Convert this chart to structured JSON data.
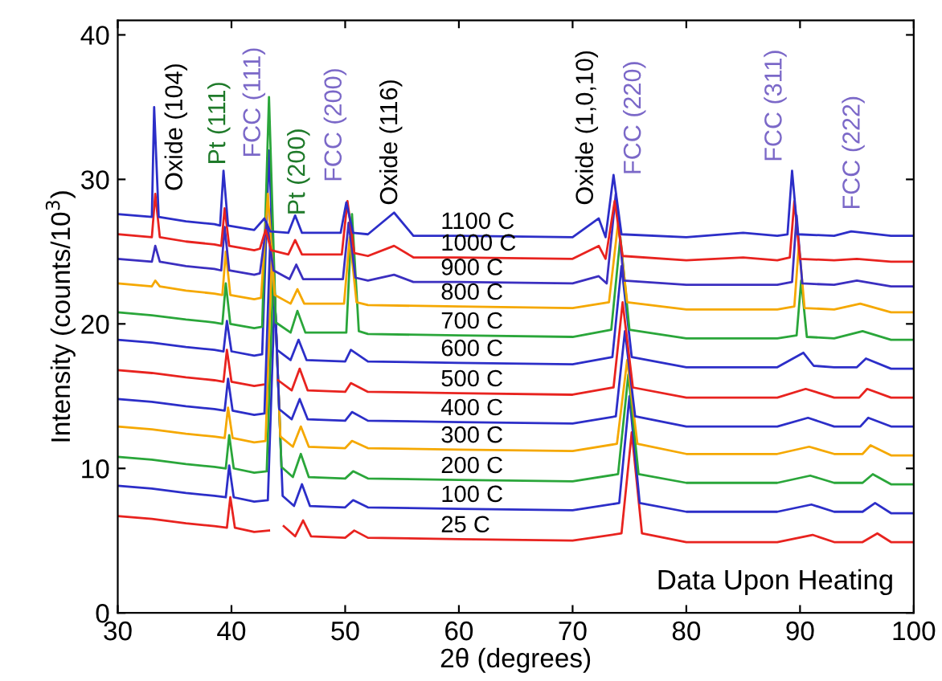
{
  "chart_data": {
    "type": "line",
    "xlabel": "2θ (degrees)",
    "ylabel": "Intensity (counts/10$^{3}$)",
    "xlim": [
      30,
      100
    ],
    "ylim": [
      0,
      41
    ],
    "xticks": [
      30,
      40,
      50,
      60,
      70,
      80,
      90,
      100
    ],
    "yticks": [
      0,
      10,
      20,
      30,
      40
    ],
    "grid": false,
    "legend": false,
    "marker": "none",
    "line_style": "solid",
    "series": [
      {
        "name": "25 C",
        "color": "#e8231f",
        "x": [
          30,
          33,
          36,
          38.5,
          39.6,
          39.9,
          40.3,
          42,
          43.3,
          43.9,
          44.6,
          45.6,
          46.3,
          47,
          50,
          50.8,
          52,
          60,
          70,
          74.3,
          75.2,
          76.1,
          80,
          88,
          91.1,
          93,
          95.5,
          96.8,
          98,
          100
        ],
        "values": [
          6.7,
          6.5,
          6.2,
          6.0,
          5.9,
          8.0,
          5.9,
          5.6,
          5.7,
          null,
          6.0,
          5.3,
          6.4,
          5.3,
          5.2,
          5.7,
          5.2,
          5.1,
          5.0,
          5.5,
          12.5,
          5.5,
          4.9,
          4.9,
          5.4,
          4.9,
          4.9,
          5.5,
          4.9,
          4.9
        ]
      },
      {
        "name": "100 C",
        "color": "#2c2ec8",
        "x": [
          30,
          33,
          36,
          38.5,
          39.5,
          39.8,
          40.2,
          42,
          43.2,
          43.8,
          44.5,
          45.5,
          46.2,
          46.9,
          50,
          50.7,
          52,
          60,
          70,
          74.1,
          75.0,
          75.9,
          80,
          88,
          91.0,
          93,
          95.5,
          96.6,
          98,
          100
        ],
        "values": [
          8.8,
          8.6,
          8.3,
          8.1,
          8.0,
          10.2,
          8.0,
          7.7,
          7.8,
          22.0,
          8.1,
          7.4,
          8.9,
          7.4,
          7.3,
          7.8,
          7.3,
          7.2,
          7.1,
          7.6,
          15.0,
          7.6,
          7.0,
          7.0,
          7.5,
          7.0,
          7.0,
          7.6,
          6.9,
          6.9
        ]
      },
      {
        "name": "200 C",
        "color": "#2aa63a",
        "x": [
          30,
          33,
          36,
          38.5,
          39.5,
          39.8,
          40.2,
          42,
          43.1,
          43.7,
          44.4,
          45.4,
          46.1,
          46.8,
          50,
          50.7,
          52,
          60,
          70,
          74.0,
          74.9,
          75.8,
          80,
          88,
          90.9,
          93,
          95.5,
          96.4,
          98,
          100
        ],
        "values": [
          10.8,
          10.6,
          10.3,
          10.1,
          10.0,
          12.3,
          10.0,
          9.7,
          9.8,
          24.0,
          10.1,
          9.4,
          11.0,
          9.4,
          9.3,
          9.8,
          9.3,
          9.2,
          9.1,
          9.6,
          16.5,
          9.6,
          9.0,
          9.0,
          9.5,
          9.0,
          9.0,
          9.6,
          8.9,
          8.9
        ]
      },
      {
        "name": "300 C",
        "color": "#f5a800",
        "x": [
          30,
          33,
          36,
          38.5,
          39.4,
          39.7,
          40.1,
          42,
          43.0,
          43.6,
          44.3,
          45.4,
          46.1,
          46.8,
          50,
          50.6,
          52,
          60,
          70,
          73.9,
          74.8,
          75.7,
          80,
          88,
          90.8,
          93,
          95.5,
          96.2,
          98,
          100
        ],
        "values": [
          12.9,
          12.7,
          12.4,
          12.2,
          12.1,
          14.2,
          12.1,
          11.8,
          11.9,
          26.0,
          12.2,
          11.5,
          12.9,
          11.5,
          11.4,
          11.9,
          11.4,
          11.3,
          11.2,
          11.7,
          17.5,
          11.7,
          11.0,
          11.0,
          11.5,
          11.0,
          11.0,
          11.6,
          10.9,
          10.9
        ]
      },
      {
        "name": "400 C",
        "color": "#2c2ec8",
        "x": [
          30,
          33,
          36,
          38.5,
          39.4,
          39.7,
          40.1,
          42,
          42.9,
          43.5,
          44.2,
          45.3,
          46.0,
          46.7,
          50,
          50.6,
          52,
          60,
          70,
          73.8,
          74.6,
          75.5,
          80,
          88,
          90.7,
          93,
          95.3,
          96.0,
          98,
          100
        ],
        "values": [
          14.8,
          14.6,
          14.3,
          14.1,
          14.0,
          16.2,
          14.0,
          13.7,
          13.8,
          28.0,
          14.1,
          13.4,
          14.8,
          13.4,
          13.3,
          13.9,
          13.3,
          13.2,
          13.1,
          13.6,
          19.5,
          13.6,
          12.9,
          12.9,
          13.5,
          12.9,
          12.9,
          13.5,
          12.9,
          12.9
        ]
      },
      {
        "name": "500 C",
        "color": "#e8231f",
        "x": [
          30,
          33,
          36,
          38.5,
          39.3,
          39.6,
          40.0,
          42,
          42.8,
          43.4,
          44.1,
          45.3,
          46.0,
          46.7,
          50,
          50.5,
          52,
          60,
          70,
          73.6,
          74.4,
          75.3,
          80,
          88,
          90.5,
          93,
          95.2,
          95.9,
          98,
          100
        ],
        "values": [
          16.8,
          16.6,
          16.3,
          16.1,
          16.0,
          18.2,
          16.0,
          15.7,
          15.8,
          null,
          16.1,
          15.4,
          16.9,
          15.4,
          15.3,
          15.9,
          15.3,
          15.2,
          15.1,
          15.6,
          21.5,
          15.6,
          14.9,
          14.9,
          15.5,
          14.9,
          14.9,
          15.5,
          14.9,
          14.9
        ]
      },
      {
        "name": "600 C",
        "color": "#2c2ec8",
        "x": [
          30,
          33,
          36,
          38.5,
          39.3,
          39.6,
          40.0,
          42,
          42.7,
          43.3,
          44.0,
          45.2,
          45.9,
          46.6,
          50,
          50.5,
          52,
          60,
          70,
          73.5,
          74.3,
          75.2,
          80,
          88,
          90.3,
          91.2,
          93,
          95.0,
          95.8,
          98,
          100
        ],
        "values": [
          18.9,
          18.7,
          18.4,
          18.2,
          18.1,
          20.2,
          18.1,
          17.8,
          17.9,
          32.0,
          18.2,
          17.5,
          18.9,
          17.5,
          17.4,
          18.2,
          17.4,
          17.3,
          17.2,
          17.7,
          24.0,
          17.7,
          17.0,
          17.0,
          18.0,
          17.1,
          17.0,
          17.0,
          17.6,
          16.9,
          16.9
        ]
      },
      {
        "name": "700 C",
        "color": "#2aa63a",
        "x": [
          30,
          33,
          36,
          38.5,
          39.2,
          39.5,
          39.9,
          42,
          42.7,
          43.3,
          43.9,
          45.2,
          45.8,
          46.5,
          50.1,
          50.6,
          51.2,
          52,
          60,
          70,
          73.4,
          74.2,
          75.0,
          80,
          88,
          89.7,
          90.1,
          90.6,
          93,
          95.5,
          98,
          100
        ],
        "values": [
          20.8,
          20.6,
          20.3,
          20.1,
          20.0,
          22.8,
          20.0,
          19.7,
          19.8,
          35.7,
          20.1,
          19.4,
          20.9,
          19.4,
          19.4,
          27.6,
          19.5,
          19.3,
          19.2,
          19.1,
          19.6,
          26.0,
          19.6,
          19.0,
          19.0,
          19.2,
          23.0,
          19.1,
          19.0,
          19.5,
          18.9,
          18.9
        ]
      },
      {
        "name": "800 C",
        "color": "#f5a800",
        "x": [
          30,
          33,
          33.3,
          33.7,
          36,
          38.5,
          39.2,
          39.5,
          39.9,
          42,
          42.6,
          43.2,
          43.8,
          45.2,
          45.8,
          46.4,
          49.9,
          50.4,
          51.0,
          52,
          60,
          70,
          73.2,
          74.0,
          74.8,
          80,
          88,
          89.5,
          89.9,
          90.4,
          93,
          95.3,
          98,
          100
        ],
        "values": [
          22.8,
          22.6,
          23.0,
          22.6,
          22.3,
          22.1,
          22.0,
          25.0,
          22.0,
          21.7,
          21.8,
          29.0,
          22.0,
          21.4,
          22.4,
          21.4,
          21.4,
          26.0,
          21.5,
          21.3,
          21.2,
          21.1,
          21.5,
          27.0,
          21.5,
          21.0,
          21.0,
          21.2,
          25.5,
          21.1,
          21.0,
          21.4,
          20.8,
          20.8
        ]
      },
      {
        "name": "900 C",
        "color": "#3b2fc0",
        "x": [
          30,
          33,
          33.3,
          33.7,
          36,
          38.5,
          39.1,
          39.4,
          39.8,
          42,
          42.5,
          43.1,
          43.7,
          45.1,
          45.7,
          46.3,
          49.8,
          50.3,
          50.9,
          52,
          54.3,
          56,
          60,
          70,
          72.3,
          73.0,
          73.8,
          74.5,
          80,
          88,
          89.3,
          89.7,
          90.2,
          93,
          95.0,
          98,
          100
        ],
        "values": [
          24.5,
          24.3,
          25.4,
          24.3,
          24.0,
          23.8,
          23.7,
          26.7,
          23.7,
          23.4,
          23.5,
          27.0,
          23.7,
          23.1,
          24.1,
          23.1,
          23.1,
          27.0,
          23.2,
          23.0,
          23.4,
          22.9,
          22.9,
          22.8,
          23.3,
          22.8,
          29.0,
          23.0,
          22.7,
          22.7,
          22.9,
          27.5,
          22.8,
          22.7,
          23.0,
          22.6,
          22.6
        ]
      },
      {
        "name": "1000 C",
        "color": "#e8231f",
        "x": [
          30,
          33,
          33.3,
          33.7,
          36,
          38.5,
          39.1,
          39.4,
          39.8,
          42,
          42.5,
          43.0,
          43.5,
          45.0,
          45.6,
          46.2,
          49.7,
          50.2,
          50.8,
          52,
          54.3,
          56,
          60,
          70,
          72.3,
          72.9,
          73.7,
          74.4,
          80,
          85,
          88,
          89.1,
          89.5,
          90.0,
          93,
          95,
          98,
          100
        ],
        "values": [
          26.2,
          26.0,
          29.0,
          26.0,
          25.7,
          25.5,
          25.4,
          28.0,
          25.4,
          25.1,
          25.2,
          26.5,
          25.1,
          24.8,
          25.8,
          24.8,
          24.8,
          28.5,
          24.9,
          24.7,
          25.4,
          24.6,
          24.6,
          24.5,
          25.4,
          24.5,
          28.5,
          24.7,
          24.4,
          24.6,
          24.4,
          24.6,
          28.5,
          24.5,
          24.4,
          24.5,
          24.3,
          24.3
        ]
      },
      {
        "name": "1100 C",
        "color": "#2c2ec8",
        "x": [
          30,
          33,
          33.2,
          33.6,
          36,
          38.5,
          39.0,
          39.3,
          39.7,
          42,
          42.9,
          43.4,
          45.0,
          45.6,
          46.2,
          49.6,
          50.1,
          50.7,
          52,
          54.3,
          56,
          60,
          70,
          72.3,
          72.9,
          73.6,
          74.3,
          80,
          85,
          88,
          88.9,
          89.3,
          89.8,
          93,
          94.5,
          98,
          100
        ],
        "values": [
          27.6,
          27.4,
          35.0,
          27.4,
          27.1,
          26.9,
          26.8,
          30.6,
          26.8,
          26.5,
          27.3,
          26.4,
          26.3,
          27.5,
          26.3,
          26.3,
          28.4,
          26.3,
          26.2,
          27.7,
          26.1,
          26.1,
          26.0,
          27.3,
          26.0,
          30.3,
          26.2,
          26.0,
          26.3,
          26.1,
          26.2,
          30.6,
          26.2,
          26.1,
          26.4,
          26.1,
          26.1
        ]
      }
    ],
    "annotations": [
      "Oxide (104)",
      "Pt (111)",
      "FCC (111)",
      "Pt (200)",
      "FCC (200)",
      "Oxide (116)",
      "Oxide (1,0,10)",
      "FCC (220)",
      "FCC (311)",
      "FCC (222)",
      "Data Upon Heating"
    ]
  }
}
